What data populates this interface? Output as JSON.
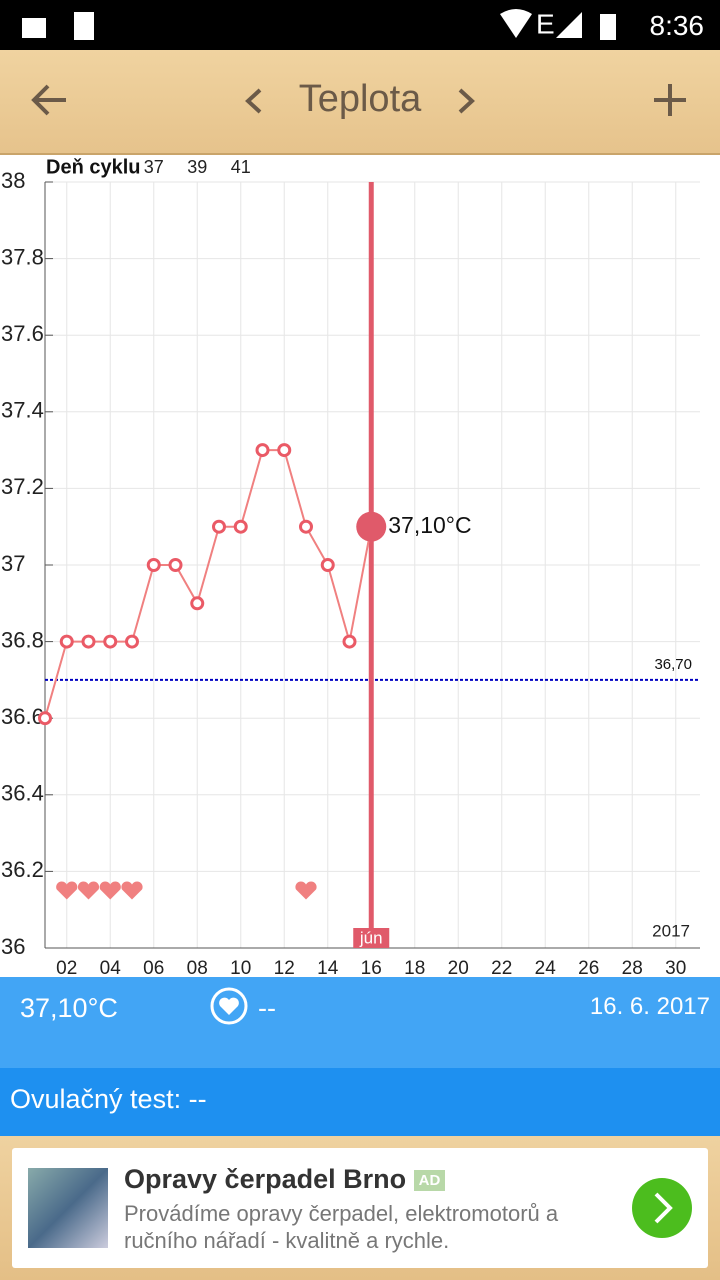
{
  "status_bar": {
    "time": "8:36"
  },
  "header": {
    "title": "Teplota"
  },
  "chart_data": {
    "type": "line",
    "axis_title": "Deň cyklu",
    "x": [
      1,
      2,
      3,
      4,
      5,
      6,
      7,
      8,
      9,
      10,
      11,
      12,
      13,
      14,
      15,
      16
    ],
    "values": [
      36.6,
      36.8,
      36.8,
      36.8,
      36.8,
      37.0,
      37.0,
      36.9,
      37.1,
      37.1,
      37.3,
      37.3,
      37.1,
      37.0,
      36.8,
      37.1
    ],
    "color": "#f08080",
    "xlim": [
      1,
      31
    ],
    "ylim": [
      36,
      38
    ],
    "xticks": [
      {
        "value": 2,
        "label": "02"
      },
      {
        "value": 4,
        "label": "04"
      },
      {
        "value": 6,
        "label": "06"
      },
      {
        "value": 8,
        "label": "08"
      },
      10,
      12,
      14,
      16,
      18,
      20,
      22,
      24,
      26,
      28,
      30
    ],
    "yticks": [
      36,
      36.2,
      36.4,
      36.6,
      36.8,
      37,
      37.2,
      37.4,
      37.6,
      37.8,
      38
    ],
    "cycle_days": {
      "x": [
        6,
        8,
        10
      ],
      "labels": [
        37,
        39,
        41
      ]
    },
    "reference_line": {
      "value": 36.7,
      "label": "36,70",
      "color": "#0000c0"
    },
    "hearts": [
      2,
      3,
      4,
      5,
      13
    ],
    "selected": {
      "x": 16,
      "value": 37.1,
      "label": "37,10°C",
      "color": "#e05a6a"
    },
    "month_label": {
      "x": 16,
      "label": "jún"
    },
    "year_label": "2017",
    "grid": true
  },
  "info": {
    "temperature": "37,10°C",
    "sex": "--",
    "date": "16. 6. 2017",
    "ovulation_test": "Ovulačný test: --"
  },
  "ad": {
    "title": "Opravy čerpadel Brno",
    "badge": "AD",
    "text": "Provádíme opravy čerpadel, elektromotorů a ručního nářadí - kvalitně a rychle."
  }
}
